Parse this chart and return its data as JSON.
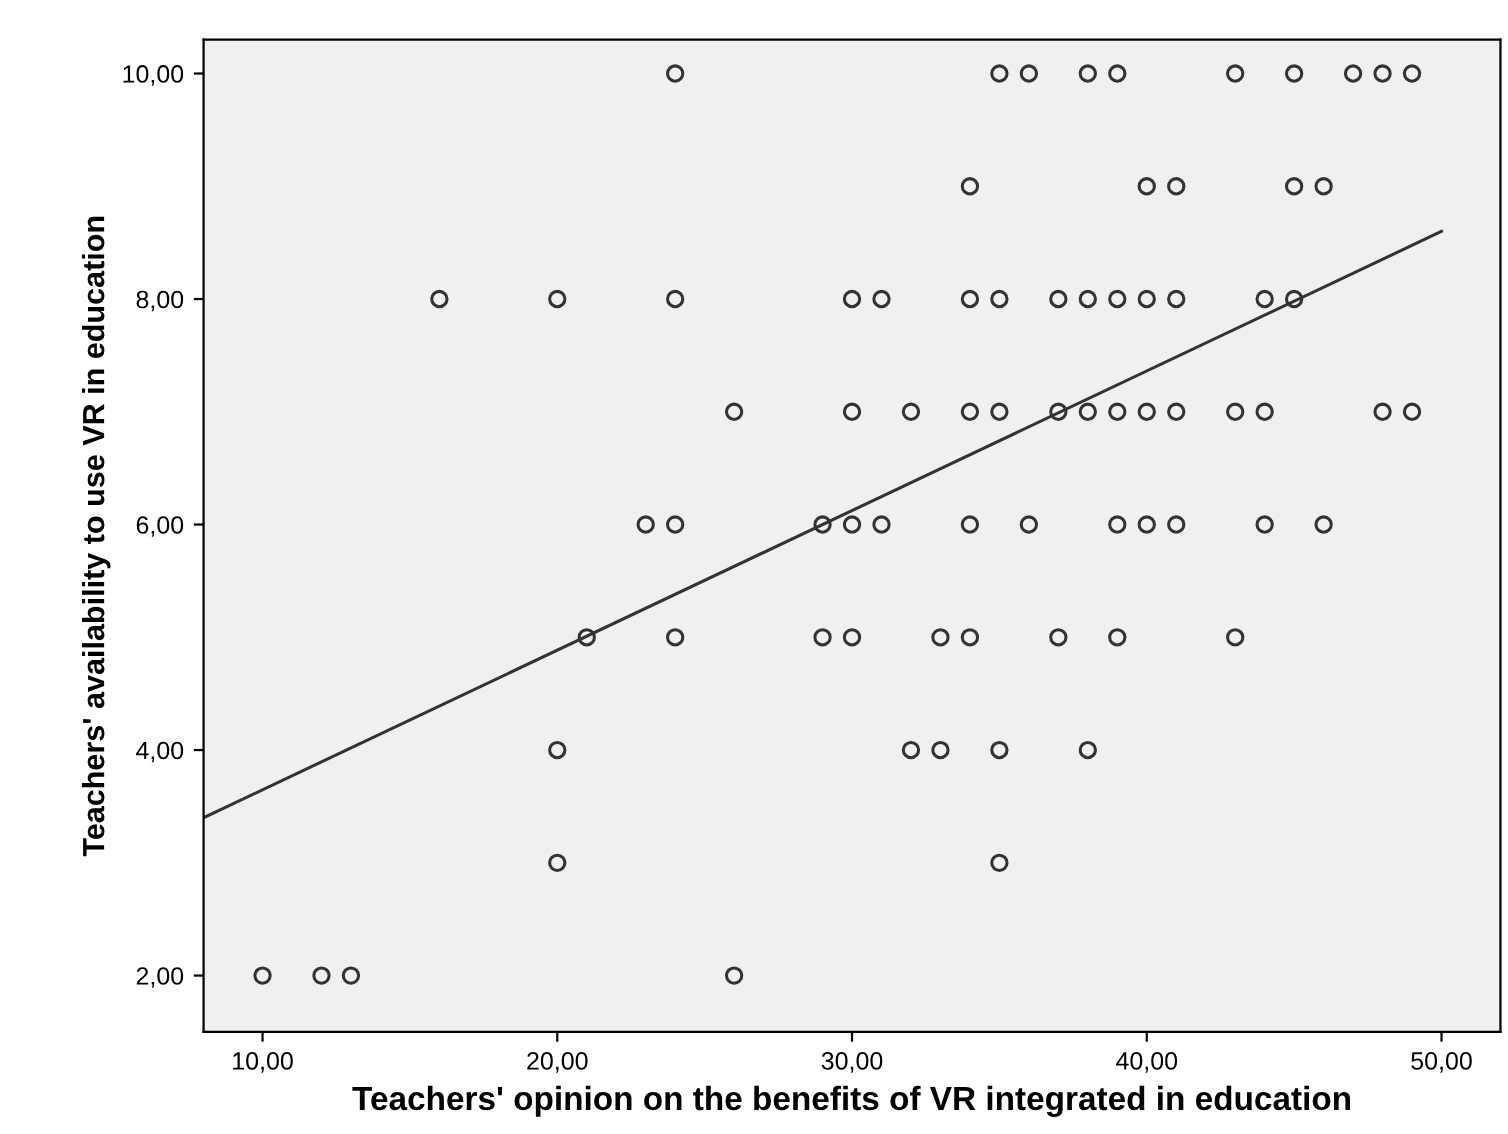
{
  "chart_data": {
    "type": "scatter",
    "xlabel": "Teachers' opinion on the benefits of VR integrated in education",
    "ylabel": "Teachers' availability to use VR in education",
    "xlim": [
      8,
      52
    ],
    "ylim": [
      1.5,
      10.3
    ],
    "xticks": [
      {
        "value": 10,
        "label": "10,00"
      },
      {
        "value": 20,
        "label": "20,00"
      },
      {
        "value": 30,
        "label": "30,00"
      },
      {
        "value": 40,
        "label": "40,00"
      },
      {
        "value": 50,
        "label": "50,00"
      }
    ],
    "yticks": [
      {
        "value": 2,
        "label": "2,00"
      },
      {
        "value": 4,
        "label": "4,00"
      },
      {
        "value": 6,
        "label": "6,00"
      },
      {
        "value": 8,
        "label": "8,00"
      },
      {
        "value": 10,
        "label": "10,00"
      }
    ],
    "grid": false,
    "legend": false,
    "series": [
      {
        "marker": "circle",
        "color": "#333333",
        "x": [
          24,
          35,
          36,
          38,
          39,
          43,
          45,
          47,
          48,
          49,
          34,
          40,
          41,
          45,
          46,
          16,
          20,
          24,
          30,
          31,
          34,
          35,
          37,
          38,
          39,
          40,
          41,
          44,
          45,
          26,
          30,
          32,
          34,
          35,
          37,
          38,
          39,
          40,
          41,
          43,
          44,
          48,
          49,
          23,
          24,
          29,
          30,
          31,
          34,
          36,
          39,
          40,
          41,
          44,
          46,
          21,
          24,
          29,
          30,
          33,
          34,
          37,
          39,
          43,
          20,
          32,
          33,
          35,
          38,
          20,
          35,
          10,
          12,
          13,
          26
        ],
        "values": [
          10,
          10,
          10,
          10,
          10,
          10,
          10,
          10,
          10,
          10,
          9,
          9,
          9,
          9,
          9,
          8,
          8,
          8,
          8,
          8,
          8,
          8,
          8,
          8,
          8,
          8,
          8,
          8,
          8,
          7,
          7,
          7,
          7,
          7,
          7,
          7,
          7,
          7,
          7,
          7,
          7,
          7,
          7,
          6,
          6,
          6,
          6,
          6,
          6,
          6,
          6,
          6,
          6,
          6,
          6,
          5,
          5,
          5,
          5,
          5,
          5,
          5,
          5,
          5,
          4,
          4,
          4,
          4,
          4,
          3,
          3,
          2,
          2,
          2,
          2
        ]
      },
      {
        "type": "line",
        "color": "#333333",
        "x": [
          8,
          50
        ],
        "values": [
          3.4,
          8.6
        ]
      }
    ]
  }
}
